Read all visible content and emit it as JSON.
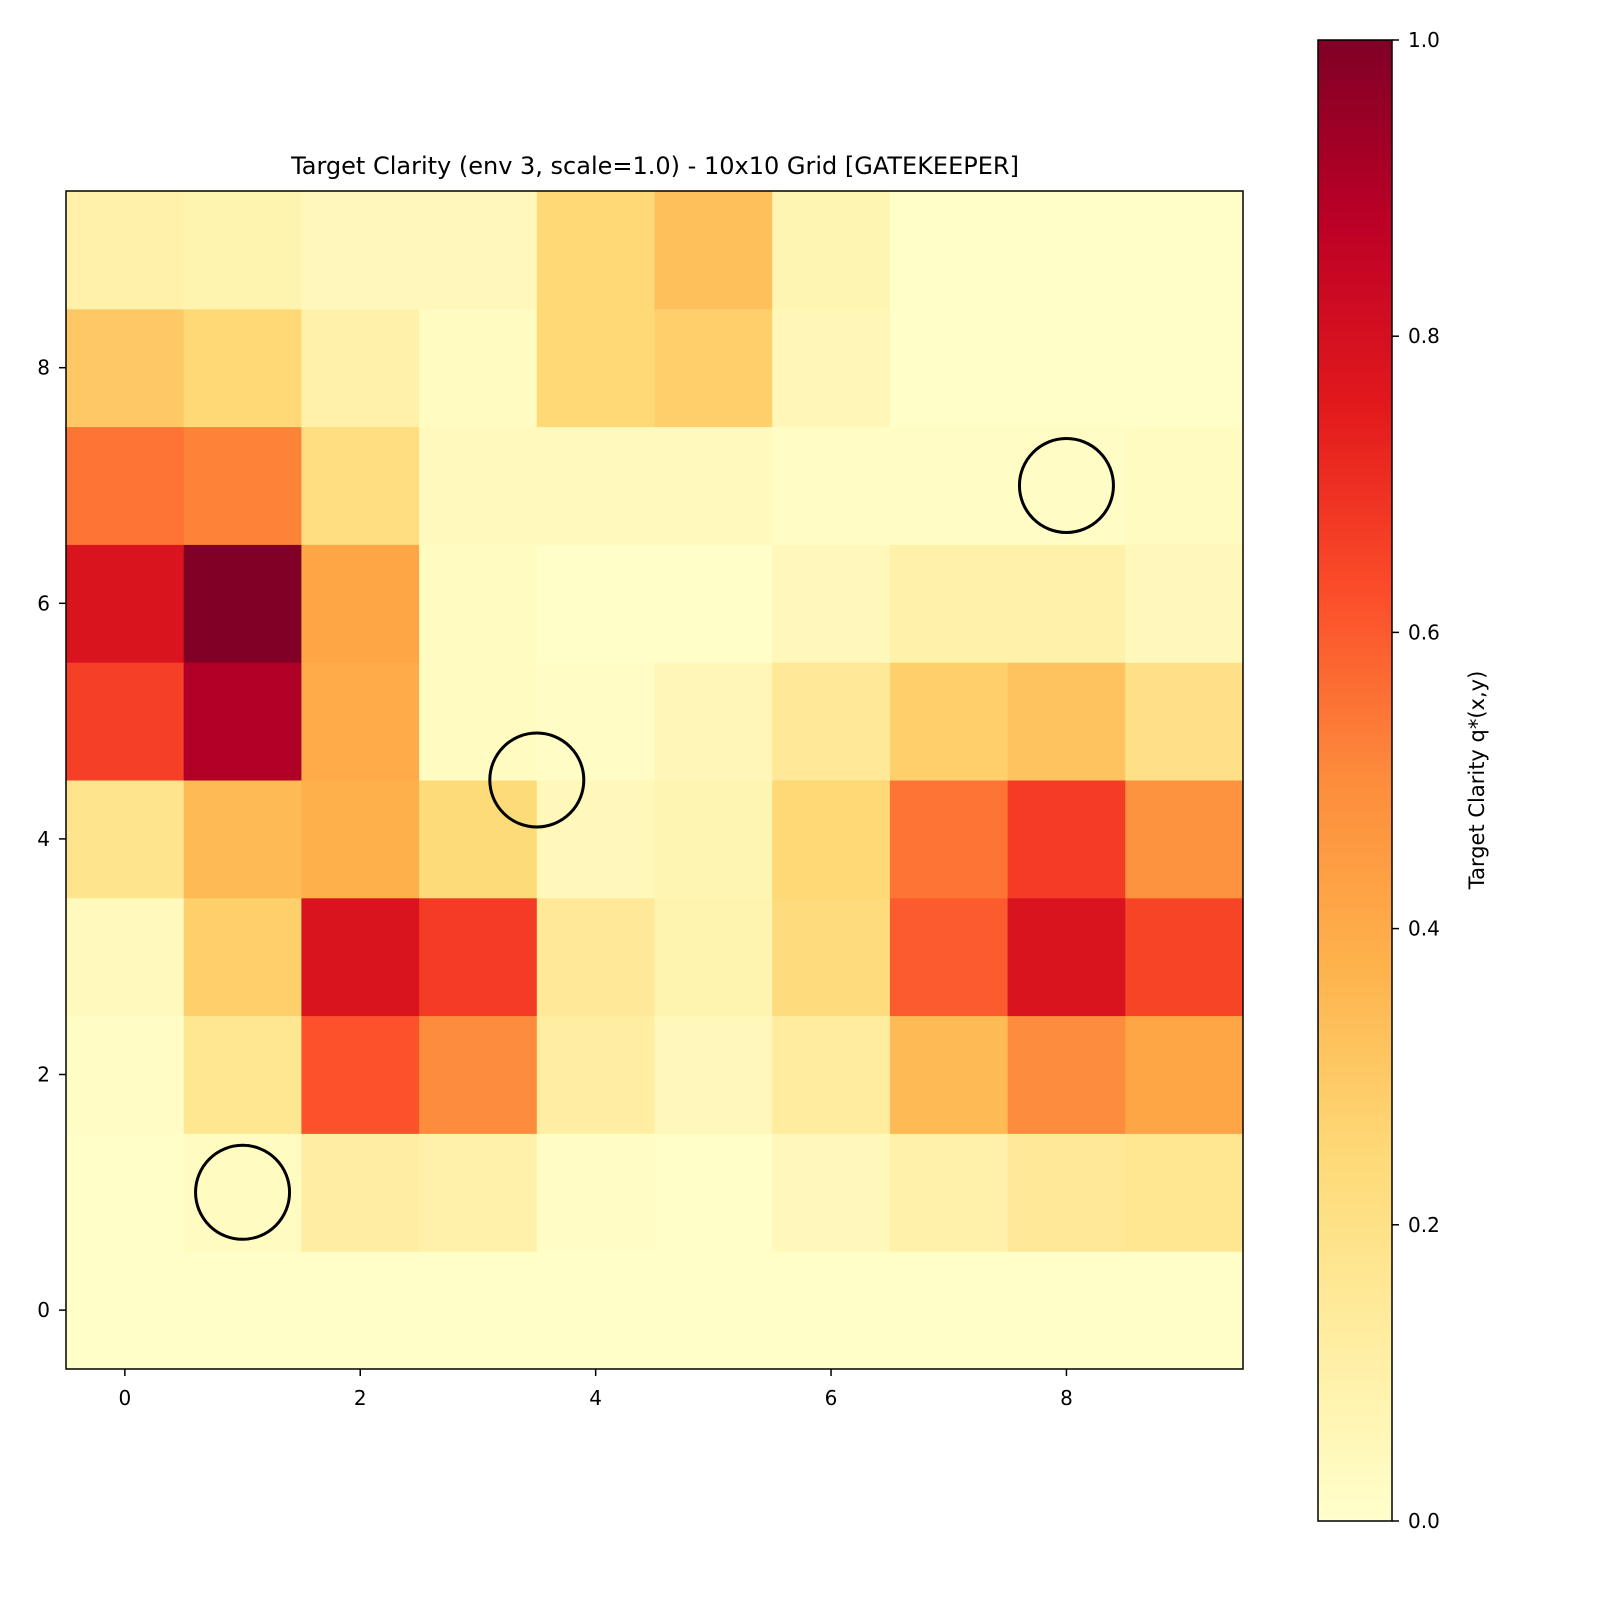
{
  "chart_data": {
    "type": "heatmap",
    "title": "Target Clarity (env 3, scale=1.0) - 10x10 Grid [GATEKEEPER]",
    "xlabel": "",
    "ylabel": "",
    "colormap": "YlOrRd",
    "xlim": [
      -0.5,
      9.5
    ],
    "ylim": [
      -0.5,
      9.5
    ],
    "x_ticks": [
      "0",
      "2",
      "4",
      "6",
      "8"
    ],
    "y_ticks": [
      "0",
      "2",
      "4",
      "6",
      "8"
    ],
    "colorbar": {
      "label": "Target Clarity q*(x,y)",
      "range": [
        0.0,
        1.0
      ],
      "ticks": [
        "0.0",
        "0.2",
        "0.4",
        "0.6",
        "0.8",
        "1.0"
      ]
    },
    "z_rows_from_y0": [
      [
        0.01,
        0.01,
        0.01,
        0.01,
        0.01,
        0.01,
        0.01,
        0.01,
        0.01,
        0.01
      ],
      [
        0.01,
        0.03,
        0.12,
        0.1,
        0.02,
        0.01,
        0.05,
        0.1,
        0.15,
        0.17
      ],
      [
        0.02,
        0.17,
        0.62,
        0.5,
        0.12,
        0.05,
        0.13,
        0.35,
        0.5,
        0.42
      ],
      [
        0.04,
        0.28,
        0.78,
        0.67,
        0.15,
        0.08,
        0.23,
        0.6,
        0.78,
        0.65
      ],
      [
        0.18,
        0.35,
        0.38,
        0.24,
        0.05,
        0.07,
        0.25,
        0.55,
        0.67,
        0.48
      ],
      [
        0.66,
        0.9,
        0.4,
        0.03,
        0.02,
        0.06,
        0.15,
        0.28,
        0.32,
        0.2
      ],
      [
        0.78,
        1.0,
        0.42,
        0.03,
        0.01,
        0.01,
        0.05,
        0.1,
        0.1,
        0.05
      ],
      [
        0.55,
        0.52,
        0.22,
        0.04,
        0.04,
        0.04,
        0.02,
        0.02,
        0.02,
        0.03
      ],
      [
        0.3,
        0.25,
        0.1,
        0.03,
        0.25,
        0.28,
        0.06,
        0.01,
        0.01,
        0.01
      ],
      [
        0.1,
        0.08,
        0.05,
        0.05,
        0.25,
        0.33,
        0.07,
        0.01,
        0.01,
        0.01
      ]
    ],
    "markers": [
      {
        "x": 1,
        "y": 1,
        "shape": "circle"
      },
      {
        "x": 3.5,
        "y": 4.5,
        "shape": "circle"
      },
      {
        "x": 8,
        "y": 7,
        "shape": "circle"
      }
    ]
  }
}
